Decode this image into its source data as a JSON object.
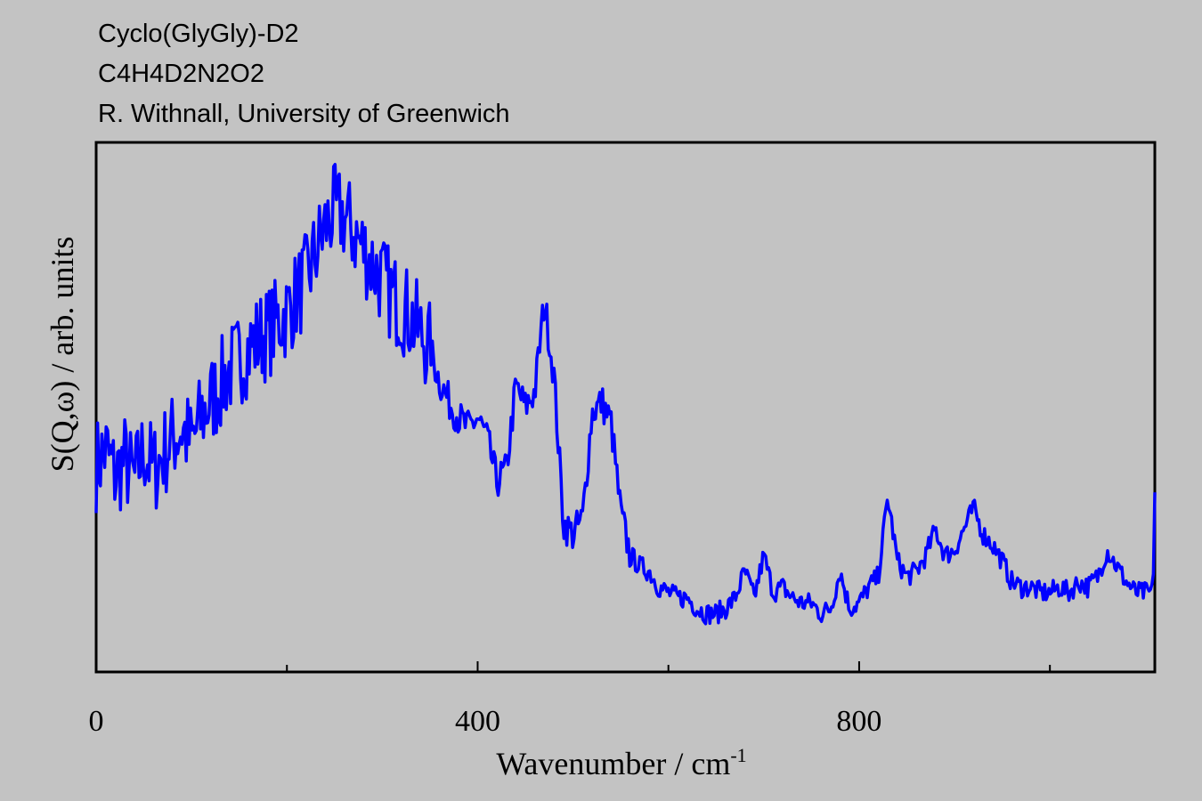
{
  "header": {
    "line1": "Cyclo(GlyGly)-D2",
    "line2": "C4H4D2N2O2",
    "line3": "R. Withnall, University of Greenwich"
  },
  "chart_data": {
    "type": "line",
    "xlabel": "Wavenumber / cm",
    "xlabel_superscript": "-1",
    "ylabel": "S(Q,ω) / arb. units",
    "xlim": [
      0,
      1110
    ],
    "ylim": [
      0,
      1
    ],
    "x_ticks": [
      0,
      400,
      800
    ],
    "x_minor_ticks": [
      200,
      600,
      1000
    ],
    "grid": false,
    "series": [
      {
        "color": "#0000ff",
        "x": [
          0,
          10,
          20,
          30,
          40,
          50,
          60,
          70,
          80,
          90,
          100,
          110,
          120,
          130,
          140,
          150,
          160,
          170,
          180,
          190,
          200,
          210,
          220,
          230,
          240,
          250,
          260,
          270,
          280,
          290,
          300,
          310,
          320,
          330,
          340,
          350,
          360,
          370,
          380,
          390,
          400,
          410,
          420,
          430,
          440,
          450,
          460,
          470,
          480,
          490,
          500,
          510,
          520,
          530,
          540,
          550,
          560,
          570,
          580,
          590,
          600,
          610,
          620,
          630,
          640,
          650,
          660,
          670,
          680,
          690,
          700,
          710,
          720,
          730,
          740,
          750,
          760,
          770,
          780,
          790,
          800,
          810,
          820,
          830,
          840,
          850,
          860,
          870,
          880,
          890,
          900,
          910,
          920,
          930,
          940,
          950,
          960,
          970,
          980,
          990,
          1000,
          1010,
          1020,
          1030,
          1040,
          1050,
          1060,
          1070,
          1080,
          1090,
          1100,
          1108,
          1110
        ],
        "y": [
          0.39,
          0.42,
          0.37,
          0.4,
          0.36,
          0.42,
          0.38,
          0.41,
          0.44,
          0.46,
          0.43,
          0.48,
          0.51,
          0.54,
          0.57,
          0.59,
          0.61,
          0.63,
          0.64,
          0.66,
          0.68,
          0.71,
          0.74,
          0.79,
          0.84,
          0.87,
          0.86,
          0.83,
          0.8,
          0.77,
          0.74,
          0.71,
          0.69,
          0.67,
          0.64,
          0.61,
          0.55,
          0.51,
          0.48,
          0.46,
          0.48,
          0.44,
          0.36,
          0.38,
          0.54,
          0.5,
          0.53,
          0.7,
          0.56,
          0.28,
          0.26,
          0.29,
          0.49,
          0.51,
          0.47,
          0.3,
          0.22,
          0.2,
          0.19,
          0.16,
          0.15,
          0.14,
          0.14,
          0.12,
          0.11,
          0.11,
          0.12,
          0.14,
          0.19,
          0.14,
          0.22,
          0.15,
          0.16,
          0.14,
          0.13,
          0.13,
          0.11,
          0.12,
          0.19,
          0.12,
          0.13,
          0.16,
          0.18,
          0.33,
          0.21,
          0.18,
          0.19,
          0.22,
          0.27,
          0.22,
          0.23,
          0.27,
          0.31,
          0.26,
          0.24,
          0.21,
          0.17,
          0.16,
          0.16,
          0.15,
          0.15,
          0.16,
          0.15,
          0.17,
          0.16,
          0.18,
          0.23,
          0.2,
          0.17,
          0.15,
          0.15,
          0.15,
          0.34
        ]
      }
    ]
  }
}
